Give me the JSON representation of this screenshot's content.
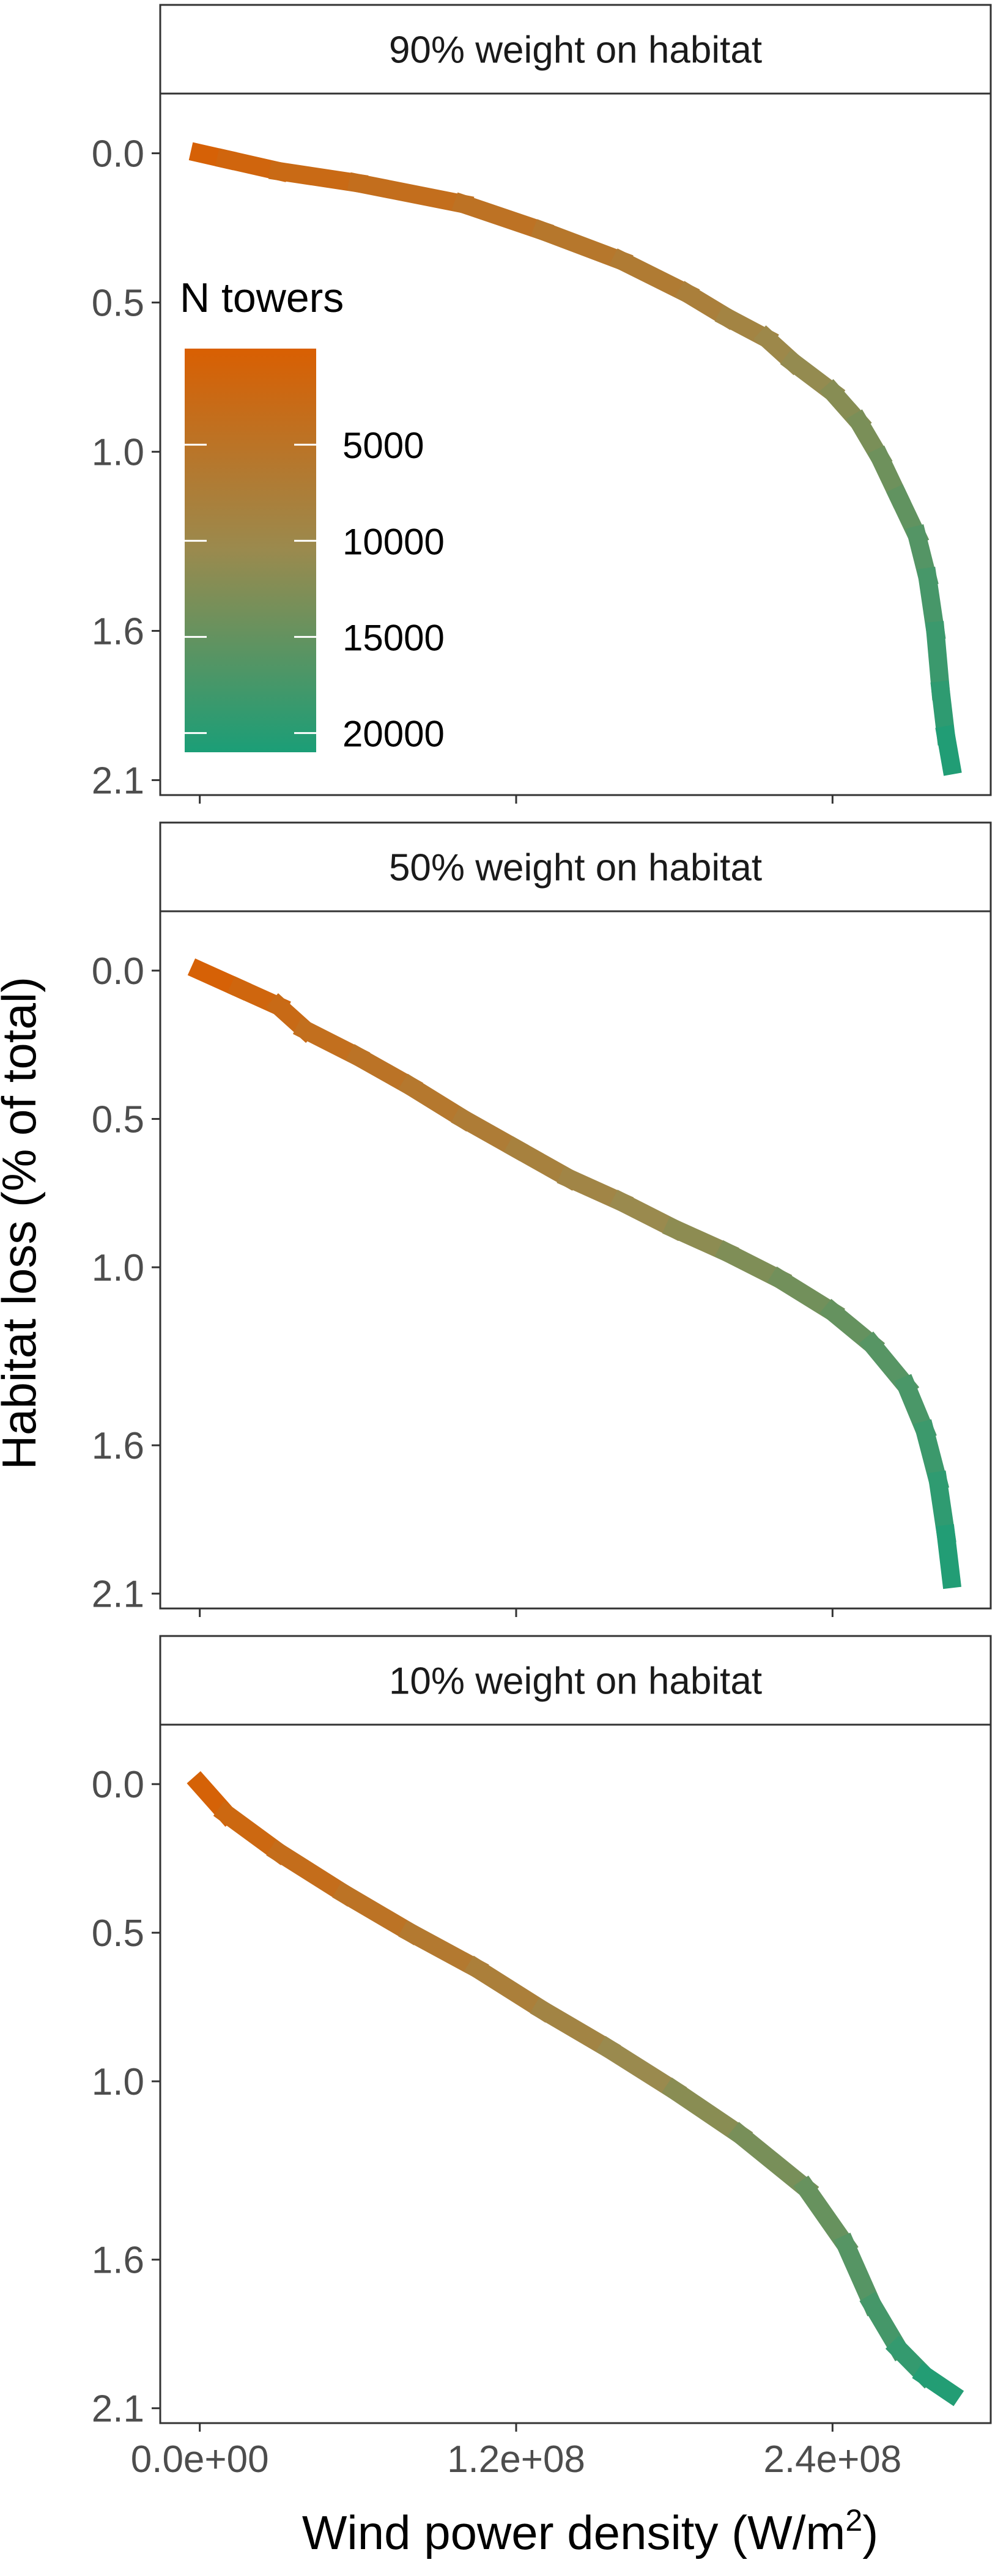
{
  "chart_data": {
    "type": "line",
    "ylabel": "Habitat loss (% of total)",
    "xlabel_prefix": "Wind power density ",
    "xlabel_unit_open": "(W/m",
    "xlabel_unit_sup": "2",
    "xlabel_unit_close": ")",
    "x_ticks": [
      0,
      120000000,
      240000000
    ],
    "x_tick_labels": [
      "0.0e+00",
      "1.2e+08",
      "2.4e+08"
    ],
    "xlim": [
      -15000000,
      300000000
    ],
    "y_ticks": [
      0.0,
      0.5,
      1.0,
      1.6,
      2.1
    ],
    "y_tick_labels": [
      "0.0",
      "0.5",
      "1.0",
      "1.6",
      "2.1"
    ],
    "ylim": [
      -0.2,
      2.15
    ],
    "y_reversed": true,
    "color_scale": {
      "low": "#d95f02",
      "mid": "#9a8a4e",
      "high": "#1b9e77"
    },
    "legend": {
      "title": "N towers",
      "min": 0,
      "max": 21000,
      "breaks": [
        5000,
        10000,
        15000,
        20000
      ],
      "labels": [
        "5000",
        "10000",
        "15000",
        "20000"
      ],
      "placement": "inside top-left of first panel"
    },
    "panels": [
      {
        "strip_label": "90% weight on habitat",
        "series": {
          "name": "N towers",
          "x": [
            0,
            10000000,
            30000000,
            60000000,
            100000000,
            130000000,
            160000000,
            185000000,
            200000000,
            215000000,
            225000000,
            240000000,
            250000000,
            258000000,
            265000000,
            272000000,
            276000000,
            279000000,
            281000000,
            283000000,
            285000000
          ],
          "y": [
            0.0,
            0.02,
            0.06,
            0.1,
            0.17,
            0.26,
            0.36,
            0.47,
            0.55,
            0.62,
            0.7,
            0.8,
            0.9,
            1.02,
            1.15,
            1.28,
            1.42,
            1.6,
            1.8,
            1.95,
            2.05
          ]
        }
      },
      {
        "strip_label": "50% weight on habitat",
        "series": {
          "name": "N towers",
          "x": [
            0,
            15000000,
            30000000,
            40000000,
            60000000,
            80000000,
            100000000,
            120000000,
            140000000,
            160000000,
            180000000,
            200000000,
            220000000,
            240000000,
            255000000,
            268000000,
            275000000,
            280000000,
            283000000,
            285000000
          ],
          "y": [
            0.0,
            0.06,
            0.12,
            0.2,
            0.29,
            0.39,
            0.5,
            0.6,
            0.7,
            0.78,
            0.87,
            0.95,
            1.04,
            1.15,
            1.26,
            1.4,
            1.55,
            1.72,
            1.9,
            2.05
          ]
        }
      },
      {
        "strip_label": "10% weight on habitat",
        "series": {
          "name": "N towers",
          "x": [
            0,
            10000000,
            30000000,
            55000000,
            80000000,
            105000000,
            130000000,
            155000000,
            180000000,
            205000000,
            230000000,
            245000000,
            255000000,
            265000000,
            275000000,
            285000000
          ],
          "y": [
            0.0,
            0.1,
            0.23,
            0.37,
            0.5,
            0.62,
            0.76,
            0.89,
            1.03,
            1.18,
            1.36,
            1.55,
            1.75,
            1.9,
            1.99,
            2.05
          ]
        }
      }
    ]
  }
}
